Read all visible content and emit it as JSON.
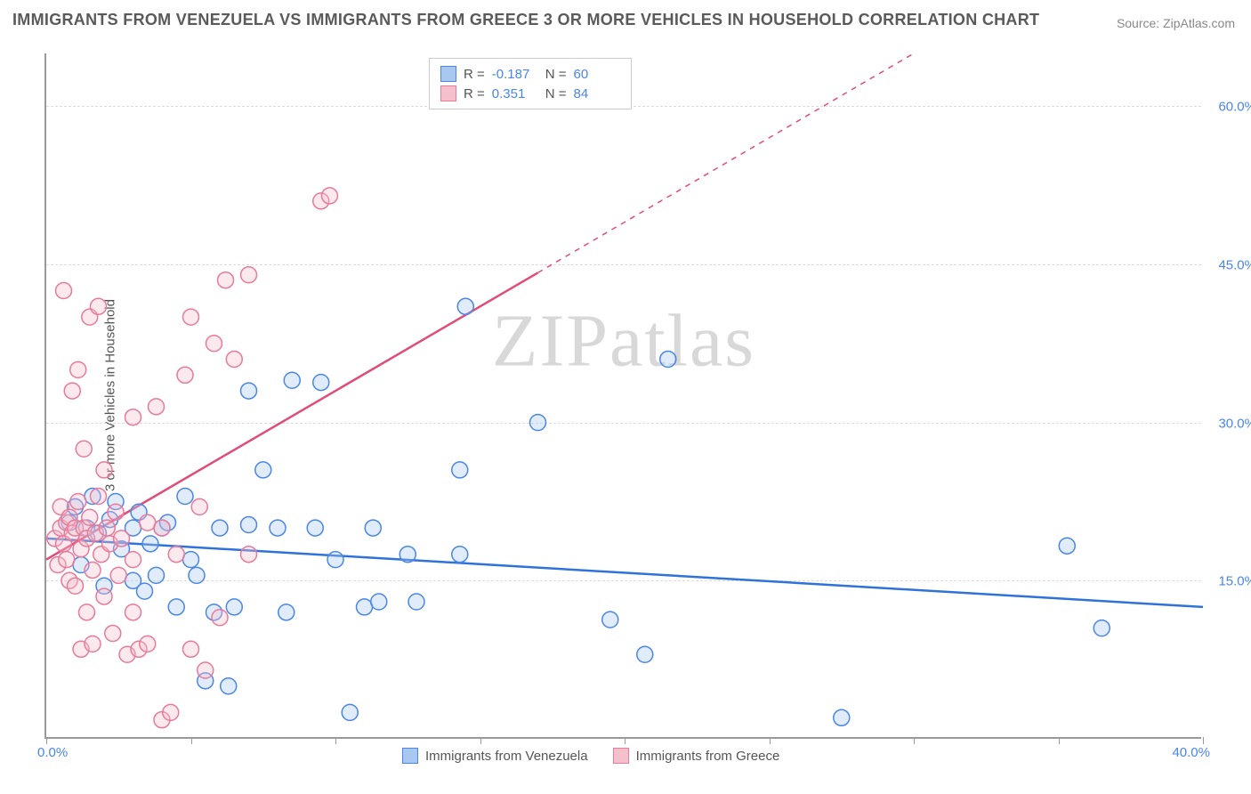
{
  "title": "IMMIGRANTS FROM VENEZUELA VS IMMIGRANTS FROM GREECE 3 OR MORE VEHICLES IN HOUSEHOLD CORRELATION CHART",
  "source": "Source: ZipAtlas.com",
  "watermark": "ZIPatlas",
  "ylabel": "3 or more Vehicles in Household",
  "chart": {
    "type": "scatter",
    "background_color": "#ffffff",
    "grid_color": "#dcdcdc",
    "axis_color": "#999999",
    "tick_label_color": "#4a86e8",
    "label_color": "#555555",
    "label_fontsize": 15,
    "tick_fontsize": 15,
    "title_fontsize": 18,
    "title_color": "#5a5a5a",
    "xlim": [
      0,
      40
    ],
    "ylim": [
      0,
      65
    ],
    "xticks": [
      0,
      5,
      10,
      15,
      20,
      25,
      30,
      35,
      40
    ],
    "yticks": [
      15,
      30,
      45,
      60
    ],
    "ytick_labels": [
      "15.0%",
      "30.0%",
      "45.0%",
      "60.0%"
    ],
    "xaxis_min_label": "0.0%",
    "xaxis_max_label": "40.0%",
    "marker_radius": 9,
    "marker_stroke_width": 1.5,
    "marker_fill_opacity": 0.35,
    "line_width": 2.5,
    "series": [
      {
        "name": "Immigrants from Venezuela",
        "legend_label": "Immigrants from Venezuela",
        "fill": "#a8c8f0",
        "stroke": "#4a86e8",
        "line_color": "#2f73d8",
        "R": "-0.187",
        "N": "60",
        "trend": {
          "x1": 0,
          "y1": 19.0,
          "x2": 40,
          "y2": 12.5,
          "solid_until_x": 40
        },
        "points": [
          [
            0.8,
            20.5
          ],
          [
            1.0,
            22.0
          ],
          [
            1.2,
            16.5
          ],
          [
            1.4,
            20.0
          ],
          [
            1.6,
            23.0
          ],
          [
            1.8,
            19.5
          ],
          [
            2.0,
            14.5
          ],
          [
            2.2,
            20.8
          ],
          [
            2.4,
            22.5
          ],
          [
            2.6,
            18.0
          ],
          [
            3.0,
            15.0
          ],
          [
            3.0,
            20.0
          ],
          [
            3.2,
            21.5
          ],
          [
            3.4,
            14.0
          ],
          [
            3.6,
            18.5
          ],
          [
            3.8,
            15.5
          ],
          [
            4.0,
            20.0
          ],
          [
            4.2,
            20.5
          ],
          [
            4.5,
            12.5
          ],
          [
            4.8,
            23.0
          ],
          [
            5.0,
            17.0
          ],
          [
            5.2,
            15.5
          ],
          [
            5.5,
            5.5
          ],
          [
            5.8,
            12.0
          ],
          [
            6.0,
            20.0
          ],
          [
            6.3,
            5.0
          ],
          [
            6.5,
            12.5
          ],
          [
            7.0,
            33.0
          ],
          [
            7.0,
            20.3
          ],
          [
            7.5,
            25.5
          ],
          [
            8.0,
            20.0
          ],
          [
            8.3,
            12.0
          ],
          [
            8.5,
            34.0
          ],
          [
            9.3,
            20.0
          ],
          [
            9.5,
            33.8
          ],
          [
            10.0,
            17.0
          ],
          [
            10.5,
            2.5
          ],
          [
            11.0,
            12.5
          ],
          [
            11.3,
            20.0
          ],
          [
            11.5,
            13.0
          ],
          [
            12.5,
            17.5
          ],
          [
            12.8,
            13.0
          ],
          [
            14.3,
            25.5
          ],
          [
            14.3,
            17.5
          ],
          [
            14.5,
            41.0
          ],
          [
            17.0,
            30.0
          ],
          [
            19.5,
            11.3
          ],
          [
            20.7,
            8.0
          ],
          [
            21.5,
            36.0
          ],
          [
            27.5,
            2.0
          ],
          [
            35.3,
            18.3
          ],
          [
            36.5,
            10.5
          ]
        ]
      },
      {
        "name": "Immigrants from Greece",
        "legend_label": "Immigrants from Greece",
        "fill": "#f5c0cc",
        "stroke": "#e87a9a",
        "line_color": "#e04d7a",
        "R": "0.351",
        "N": "84",
        "trend": {
          "x1": 0,
          "y1": 17.0,
          "x2": 30,
          "y2": 65,
          "solid_until_x": 17
        },
        "points": [
          [
            0.3,
            19.0
          ],
          [
            0.4,
            16.5
          ],
          [
            0.5,
            22.0
          ],
          [
            0.5,
            20.0
          ],
          [
            0.6,
            18.5
          ],
          [
            0.6,
            42.5
          ],
          [
            0.7,
            20.5
          ],
          [
            0.7,
            17.0
          ],
          [
            0.8,
            21.0
          ],
          [
            0.8,
            15.0
          ],
          [
            0.9,
            19.5
          ],
          [
            0.9,
            33.0
          ],
          [
            1.0,
            20.0
          ],
          [
            1.0,
            14.5
          ],
          [
            1.1,
            22.5
          ],
          [
            1.1,
            35.0
          ],
          [
            1.2,
            18.0
          ],
          [
            1.2,
            8.5
          ],
          [
            1.3,
            20.0
          ],
          [
            1.3,
            27.5
          ],
          [
            1.4,
            19.0
          ],
          [
            1.4,
            12.0
          ],
          [
            1.5,
            21.0
          ],
          [
            1.5,
            40.0
          ],
          [
            1.6,
            16.0
          ],
          [
            1.6,
            9.0
          ],
          [
            1.7,
            19.5
          ],
          [
            1.8,
            23.0
          ],
          [
            1.8,
            41.0
          ],
          [
            1.9,
            17.5
          ],
          [
            2.0,
            25.5
          ],
          [
            2.0,
            13.5
          ],
          [
            2.1,
            20.0
          ],
          [
            2.2,
            18.5
          ],
          [
            2.3,
            10.0
          ],
          [
            2.4,
            21.5
          ],
          [
            2.5,
            15.5
          ],
          [
            2.6,
            19.0
          ],
          [
            2.8,
            8.0
          ],
          [
            3.0,
            30.5
          ],
          [
            3.0,
            17.0
          ],
          [
            3.0,
            12.0
          ],
          [
            3.2,
            8.5
          ],
          [
            3.5,
            9.0
          ],
          [
            3.5,
            20.5
          ],
          [
            3.8,
            31.5
          ],
          [
            4.0,
            1.8
          ],
          [
            4.0,
            20.0
          ],
          [
            4.3,
            2.5
          ],
          [
            4.5,
            17.5
          ],
          [
            4.8,
            34.5
          ],
          [
            5.0,
            8.5
          ],
          [
            5.0,
            40.0
          ],
          [
            5.3,
            22.0
          ],
          [
            5.5,
            6.5
          ],
          [
            5.8,
            37.5
          ],
          [
            6.0,
            11.5
          ],
          [
            6.2,
            43.5
          ],
          [
            6.5,
            36.0
          ],
          [
            7.0,
            44.0
          ],
          [
            7.0,
            17.5
          ],
          [
            9.5,
            51.0
          ],
          [
            9.8,
            51.5
          ]
        ]
      }
    ]
  }
}
